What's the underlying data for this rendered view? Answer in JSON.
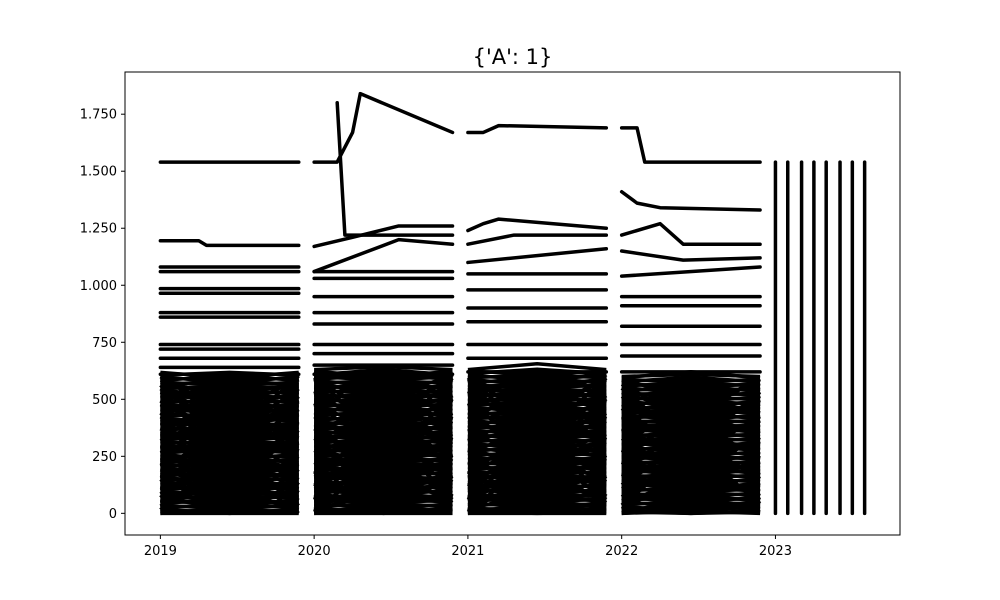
{
  "chart_data": {
    "type": "line",
    "title": "{'A': 1}",
    "xlabel": "",
    "ylabel": "",
    "xlim": [
      2018.77,
      2023.81
    ],
    "ylim": [
      -95,
      1935
    ],
    "x_ticks": [
      {
        "value": 2019,
        "label": "2019"
      },
      {
        "value": 2020,
        "label": "2020"
      },
      {
        "value": 2021,
        "label": "2021"
      },
      {
        "value": 2022,
        "label": "2022"
      },
      {
        "value": 2023,
        "label": "2023"
      }
    ],
    "y_ticks": [
      {
        "value": 0,
        "label": "0"
      },
      {
        "value": 250,
        "label": "250"
      },
      {
        "value": 500,
        "label": "500"
      },
      {
        "value": 750,
        "label": "750"
      },
      {
        "value": 1000,
        "label": "1.000"
      },
      {
        "value": 1250,
        "label": "1.250"
      },
      {
        "value": 1500,
        "label": "1.500"
      },
      {
        "value": 1750,
        "label": "1.750"
      }
    ],
    "grid": false,
    "line_color": "#000000",
    "series": [
      {
        "x": [
          2019.0,
          2019.9,
          2019.0
        ],
        "values": [
          1540,
          1540,
          1540
        ]
      },
      {
        "x": [
          2019.0,
          2019.25,
          2019.3,
          2019.9
        ],
        "values": [
          1195,
          1195,
          1175,
          1175
        ]
      },
      {
        "x": [
          2019.0,
          2019.9
        ],
        "values": [
          1080,
          1080
        ]
      },
      {
        "x": [
          2019.0,
          2019.9
        ],
        "values": [
          1060,
          1060
        ]
      },
      {
        "x": [
          2019.0,
          2019.9
        ],
        "values": [
          985,
          985
        ]
      },
      {
        "x": [
          2019.0,
          2019.9
        ],
        "values": [
          965,
          965
        ]
      },
      {
        "x": [
          2019.0,
          2019.9
        ],
        "values": [
          880,
          880
        ]
      },
      {
        "x": [
          2019.0,
          2019.9
        ],
        "values": [
          860,
          860
        ]
      },
      {
        "x": [
          2019.0,
          2019.9
        ],
        "values": [
          740,
          740
        ]
      },
      {
        "x": [
          2019.0,
          2019.9
        ],
        "values": [
          720,
          720
        ]
      },
      {
        "x": [
          2019.0,
          2019.9
        ],
        "values": [
          680,
          680
        ]
      },
      {
        "x": [
          2019.0,
          2019.9
        ],
        "values": [
          640,
          640
        ]
      },
      {
        "x": [
          2019.0,
          2019.9
        ],
        "values": [
          610,
          610
        ]
      },
      {
        "x": [
          2020.0,
          2020.15,
          2020.25,
          2020.3,
          2020.9
        ],
        "values": [
          1540,
          1540,
          1670,
          1840,
          1670
        ]
      },
      {
        "x": [
          2020.15,
          2020.2,
          2020.9
        ],
        "values": [
          1800,
          1220,
          1220
        ]
      },
      {
        "x": [
          2020.0,
          2020.25,
          2020.55,
          2020.9
        ],
        "values": [
          1170,
          1210,
          1260,
          1260
        ]
      },
      {
        "x": [
          2020.0,
          2020.55,
          2020.9
        ],
        "values": [
          1060,
          1200,
          1180
        ]
      },
      {
        "x": [
          2020.0,
          2020.9
        ],
        "values": [
          1060,
          1060
        ]
      },
      {
        "x": [
          2020.0,
          2020.9
        ],
        "values": [
          1030,
          1030
        ]
      },
      {
        "x": [
          2020.0,
          2020.9
        ],
        "values": [
          950,
          950
        ]
      },
      {
        "x": [
          2020.0,
          2020.9
        ],
        "values": [
          880,
          880
        ]
      },
      {
        "x": [
          2020.0,
          2020.9
        ],
        "values": [
          830,
          830
        ]
      },
      {
        "x": [
          2020.0,
          2020.9
        ],
        "values": [
          740,
          740
        ]
      },
      {
        "x": [
          2020.0,
          2020.9
        ],
        "values": [
          700,
          700
        ]
      },
      {
        "x": [
          2020.0,
          2020.9
        ],
        "values": [
          650,
          650
        ]
      },
      {
        "x": [
          2020.0,
          2020.9
        ],
        "values": [
          610,
          610
        ]
      },
      {
        "x": [
          2021.0,
          2021.1,
          2021.2,
          2021.9
        ],
        "values": [
          1670,
          1670,
          1700,
          1690
        ]
      },
      {
        "x": [
          2021.0,
          2021.1,
          2021.2,
          2021.9
        ],
        "values": [
          1240,
          1270,
          1290,
          1250
        ]
      },
      {
        "x": [
          2021.0,
          2021.3,
          2021.9
        ],
        "values": [
          1180,
          1220,
          1220
        ]
      },
      {
        "x": [
          2021.0,
          2021.9
        ],
        "values": [
          1100,
          1160
        ]
      },
      {
        "x": [
          2021.0,
          2021.9
        ],
        "values": [
          1050,
          1050
        ]
      },
      {
        "x": [
          2021.0,
          2021.9
        ],
        "values": [
          980,
          980
        ]
      },
      {
        "x": [
          2021.0,
          2021.9
        ],
        "values": [
          900,
          900
        ]
      },
      {
        "x": [
          2021.0,
          2021.9
        ],
        "values": [
          840,
          840
        ]
      },
      {
        "x": [
          2021.0,
          2021.9
        ],
        "values": [
          740,
          740
        ]
      },
      {
        "x": [
          2021.0,
          2021.9
        ],
        "values": [
          680,
          680
        ]
      },
      {
        "x": [
          2021.0,
          2021.9
        ],
        "values": [
          620,
          620
        ]
      },
      {
        "x": [
          2022.0,
          2022.1,
          2022.15,
          2022.9
        ],
        "values": [
          1690,
          1690,
          1540,
          1540
        ]
      },
      {
        "x": [
          2022.0,
          2022.1,
          2022.25,
          2022.9
        ],
        "values": [
          1410,
          1360,
          1340,
          1330
        ]
      },
      {
        "x": [
          2022.0,
          2022.25,
          2022.4,
          2022.9
        ],
        "values": [
          1220,
          1270,
          1180,
          1180
        ]
      },
      {
        "x": [
          2022.0,
          2022.4,
          2022.9
        ],
        "values": [
          1150,
          1110,
          1120
        ]
      },
      {
        "x": [
          2022.0,
          2022.9
        ],
        "values": [
          1040,
          1080
        ]
      },
      {
        "x": [
          2022.0,
          2022.9
        ],
        "values": [
          950,
          950
        ]
      },
      {
        "x": [
          2022.0,
          2022.9
        ],
        "values": [
          910,
          910
        ]
      },
      {
        "x": [
          2022.0,
          2022.9
        ],
        "values": [
          820,
          820
        ]
      },
      {
        "x": [
          2022.0,
          2022.9
        ],
        "values": [
          740,
          740
        ]
      },
      {
        "x": [
          2022.0,
          2022.9
        ],
        "values": [
          690,
          690
        ]
      },
      {
        "x": [
          2022.0,
          2022.9
        ],
        "values": [
          620,
          620
        ]
      },
      {
        "x": [
          2023.0,
          2023.0
        ],
        "values": [
          0,
          1540
        ]
      },
      {
        "x": [
          2023.08,
          2023.08
        ],
        "values": [
          0,
          1540
        ]
      },
      {
        "x": [
          2023.17,
          2023.17
        ],
        "values": [
          0,
          1540
        ]
      },
      {
        "x": [
          2023.25,
          2023.25
        ],
        "values": [
          0,
          1540
        ]
      },
      {
        "x": [
          2023.33,
          2023.33
        ],
        "values": [
          0,
          1540
        ]
      },
      {
        "x": [
          2023.42,
          2023.42
        ],
        "values": [
          0,
          1540
        ]
      },
      {
        "x": [
          2023.5,
          2023.5
        ],
        "values": [
          0,
          1540
        ]
      },
      {
        "x": [
          2023.58,
          2023.58
        ],
        "values": [
          0,
          1540
        ]
      }
    ],
    "dense_blocks": [
      {
        "x_start": 2019.0,
        "x_end": 2019.9,
        "y_max": 620
      },
      {
        "x_start": 2020.0,
        "x_end": 2020.9,
        "y_max": 630
      },
      {
        "x_start": 2021.0,
        "x_end": 2021.9,
        "y_max": 630
      },
      {
        "x_start": 2022.0,
        "x_end": 2022.9,
        "y_max": 600
      }
    ]
  }
}
